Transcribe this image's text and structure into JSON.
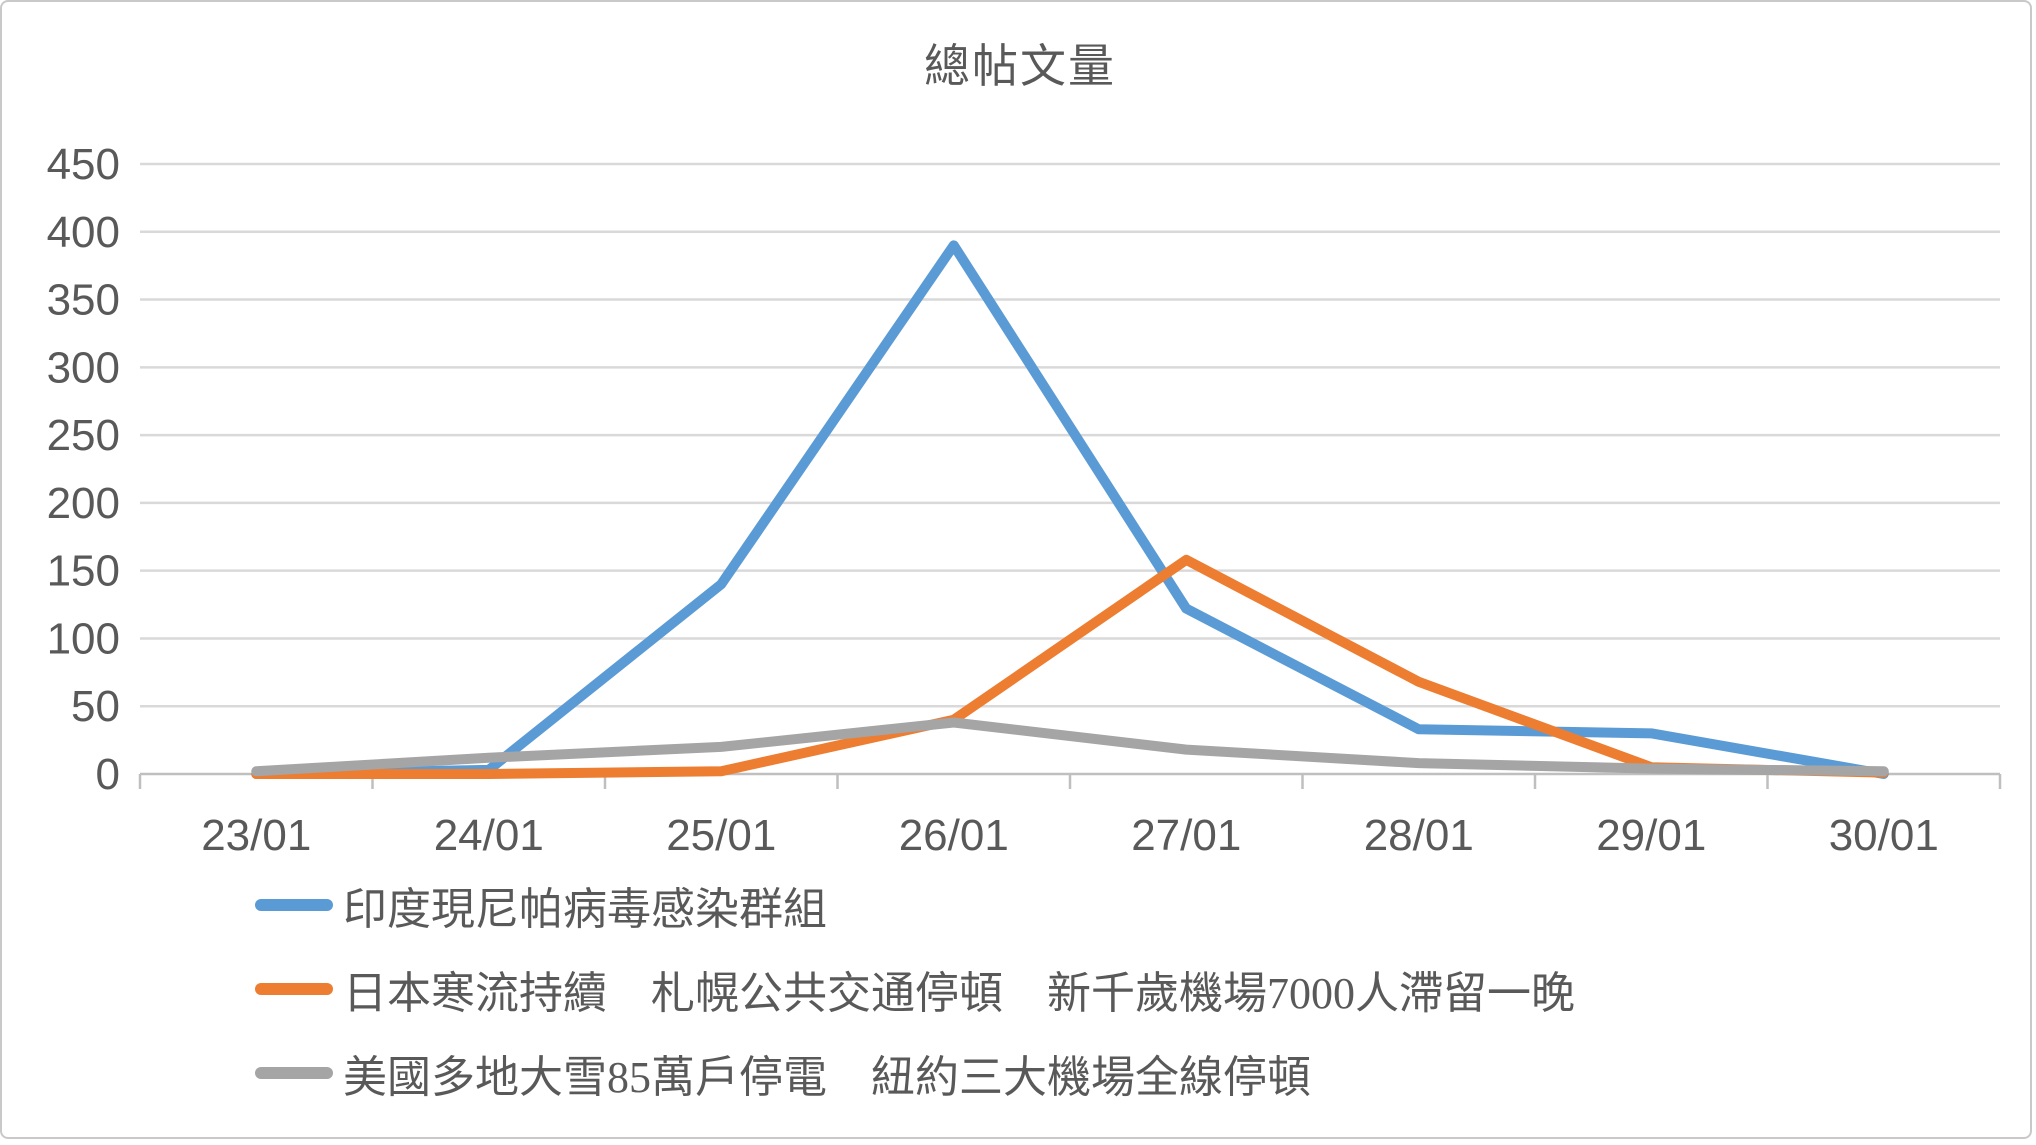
{
  "chart_data": {
    "type": "line",
    "title": "總帖文量",
    "categories": [
      "23/01",
      "24/01",
      "25/01",
      "26/01",
      "27/01",
      "28/01",
      "29/01",
      "30/01"
    ],
    "series": [
      {
        "name": "印度現尼帕病毒感染群組",
        "color": "#5B9BD5",
        "values": [
          0,
          3,
          140,
          390,
          122,
          33,
          30,
          0
        ]
      },
      {
        "name": "日本寒流持續　札幌公共交通停頓　新千歲機場7000人滯留一晚",
        "color": "#ED7D31",
        "values": [
          0,
          0,
          2,
          40,
          158,
          68,
          5,
          1
        ]
      },
      {
        "name": "美國多地大雪85萬戶停電　紐約三大機場全線停頓",
        "color": "#A5A5A5",
        "values": [
          2,
          12,
          20,
          38,
          18,
          8,
          4,
          2
        ]
      }
    ],
    "ylim": [
      0,
      450
    ],
    "ytick_step": 50,
    "xlabel": "",
    "ylabel": "",
    "grid": true,
    "legend_position": "bottom-left",
    "gridline_color": "#D9D9D9",
    "axis_line_color": "#BFBFBF",
    "text_color": "#595959"
  }
}
